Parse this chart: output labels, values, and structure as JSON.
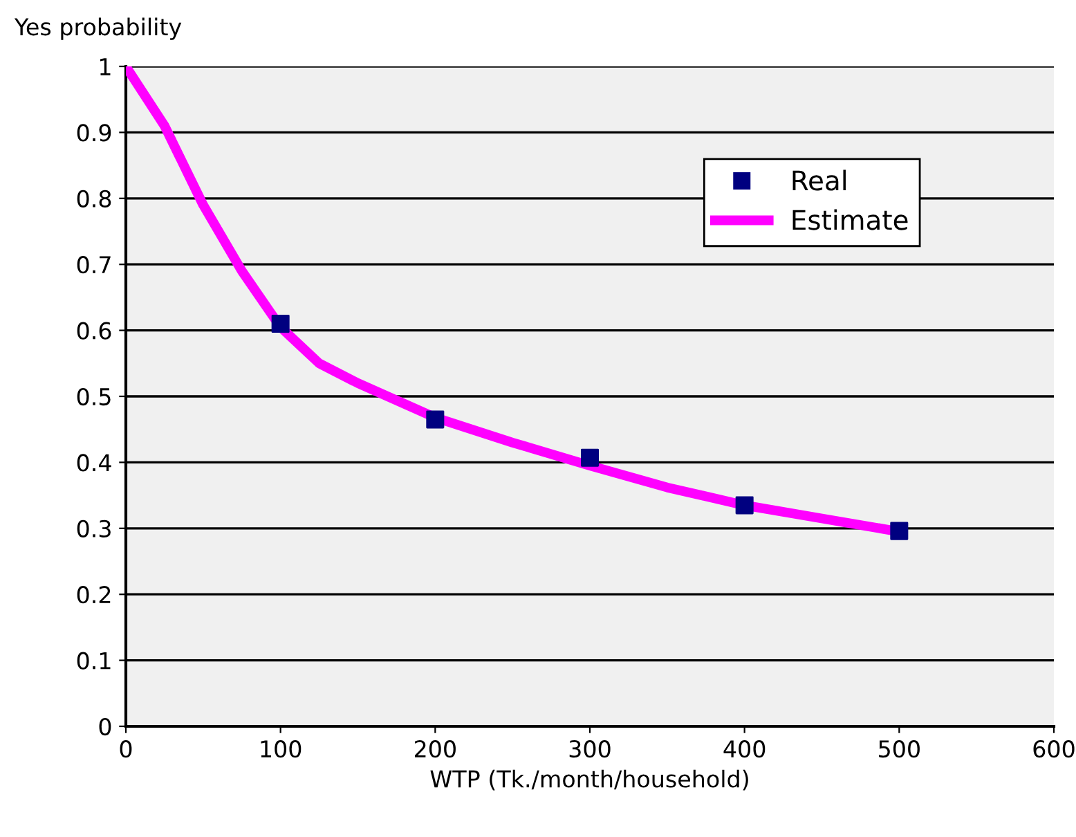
{
  "chart_data": {
    "type": "scatter",
    "ylabel": "Yes probability",
    "xlabel": "WTP (Tk./month/household)",
    "series": [
      {
        "name": "Real",
        "color": "#000080",
        "marker": "square",
        "x": [
          100,
          200,
          300,
          400,
          500
        ],
        "values": [
          0.61,
          0.465,
          0.407,
          0.335,
          0.296
        ]
      },
      {
        "name": "Estimate",
        "type": "line",
        "color": "#ff00ff",
        "marker": "none",
        "line_style": "solid",
        "x": [
          0,
          25,
          50,
          75,
          100,
          125,
          150,
          200,
          250,
          300,
          350,
          400,
          450,
          500
        ],
        "values": [
          1.0,
          0.91,
          0.79,
          0.69,
          0.605,
          0.55,
          0.52,
          0.468,
          0.43,
          0.395,
          0.362,
          0.335,
          0.315,
          0.295
        ]
      }
    ],
    "xlim": [
      0,
      600
    ],
    "xticks": [
      0,
      100,
      200,
      300,
      400,
      500,
      600
    ],
    "ylim": [
      0,
      1
    ],
    "yticks": [
      0,
      0.1,
      0.2,
      0.3,
      0.4,
      0.5,
      0.6,
      0.7,
      0.8,
      0.9,
      1
    ],
    "grid": "y",
    "legend": "top right"
  }
}
